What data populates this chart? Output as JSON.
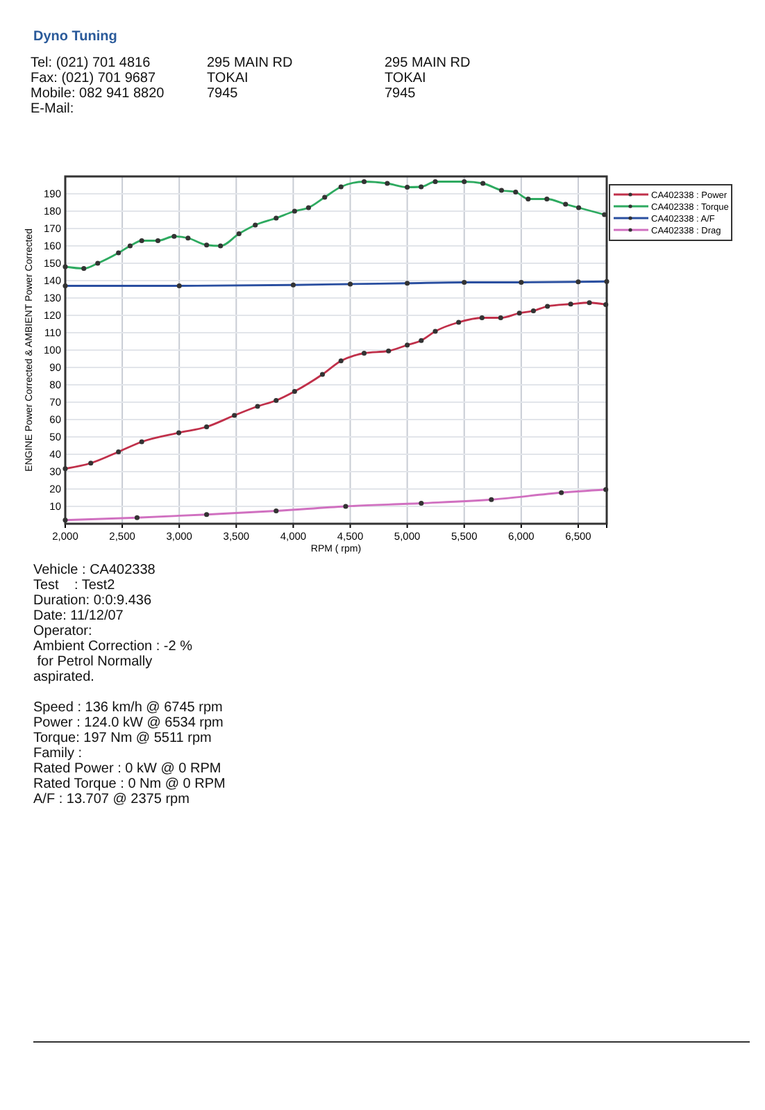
{
  "chart_data": {
    "type": "line",
    "xlabel": "RPM ( rpm)",
    "ylabel": "ENGINE Power Corrected & AMBIENT Power Corrected",
    "xlim": [
      2000,
      6750
    ],
    "ylim": [
      0,
      200
    ],
    "xticks": [
      {
        "value": 2000,
        "label": "2,000"
      },
      {
        "value": 2500,
        "label": "2,500"
      },
      {
        "value": 3000,
        "label": "3,000"
      },
      {
        "value": 3500,
        "label": "3,500"
      },
      {
        "value": 4000,
        "label": "4,000"
      },
      {
        "value": 4500,
        "label": "4,500"
      },
      {
        "value": 5000,
        "label": "5,000"
      },
      {
        "value": 5500,
        "label": "5,500"
      },
      {
        "value": 6000,
        "label": "6,000"
      },
      {
        "value": 6500,
        "label": "6,500"
      }
    ],
    "yticks": [
      10,
      20,
      30,
      40,
      50,
      60,
      70,
      80,
      90,
      100,
      110,
      120,
      130,
      140,
      150,
      160,
      170,
      180,
      190
    ],
    "grid": true,
    "legend": "top right",
    "marker": "circle",
    "line_style": "solid",
    "series": [
      {
        "name": "CA402338 : Power",
        "color": "#c0304a",
        "x": [
          2000,
          2224,
          2467,
          2671,
          2996,
          3240,
          3484,
          3687,
          3850,
          4012,
          4256,
          4419,
          4622,
          4836,
          5000,
          5123,
          5246,
          5451,
          5656,
          5820,
          5984,
          6107,
          6230,
          6434,
          6598,
          6742
        ],
        "values": [
          31.7,
          34.9,
          41.4,
          47.2,
          52.4,
          55.8,
          62.4,
          67.6,
          71,
          76.2,
          86,
          93.8,
          98.2,
          99.5,
          102.9,
          105.5,
          110.8,
          116,
          118.6,
          118.6,
          121.3,
          122.6,
          125.2,
          126.5,
          127.3,
          126.2
        ]
      },
      {
        "name": "CA402338 : Torque",
        "color": "#2eaa60",
        "x": [
          2000,
          2163,
          2285,
          2467,
          2569,
          2671,
          2813,
          2955,
          3077,
          3240,
          3362,
          3524,
          3667,
          3850,
          4012,
          4134,
          4276,
          4419,
          4622,
          4825,
          5000,
          5122,
          5246,
          5500,
          5664,
          5827,
          5951,
          6061,
          6225,
          6389,
          6504,
          6730
        ],
        "values": [
          148,
          147,
          150,
          156,
          160,
          163,
          163,
          165.5,
          164.5,
          160.5,
          160,
          167,
          172,
          176,
          180,
          182,
          188,
          194,
          197,
          196,
          193.8,
          194,
          197,
          197,
          196,
          192,
          191,
          187,
          187,
          184,
          182,
          178
        ]
      },
      {
        "name": "CA402338 : A/F",
        "color": "#2a4fa0",
        "x": [
          2000,
          3000,
          4000,
          4500,
          5000,
          5500,
          6000,
          6500,
          6750
        ],
        "values": [
          137,
          137,
          137.5,
          138,
          138.5,
          139,
          139,
          139.3,
          139.5
        ]
      },
      {
        "name": "CA402338 : Drag",
        "color": "#d070c0",
        "x": [
          2000,
          2630,
          3240,
          3850,
          4460,
          5123,
          5738,
          6352,
          6742
        ],
        "values": [
          2.1,
          3.5,
          5.3,
          7.4,
          10,
          11.8,
          13.9,
          17.9,
          19.7
        ]
      }
    ],
    "annotations": [
      "Dyno Tuning",
      "Tel: (021) 701 4816",
      "Fax: (021) 701 9687",
      "Mobile: 082 941 8820",
      "E-Mail:",
      "295 MAIN RD",
      "TOKAI",
      "7945",
      "295 MAIN RD",
      "TOKAI",
      "7945",
      "Vehicle : CA402338",
      "Test    : Test2",
      "Duration: 0:0:9.436",
      "Date: 11/12/07",
      "Operator:",
      "Ambient Correction : -2 %",
      " for Petrol Normally",
      "aspirated.",
      "Speed : 136 km/h @ 6745 rpm",
      "Power : 124.0 kW @ 6534 rpm",
      "Torque: 197 Nm @ 5511 rpm",
      "Family :",
      "Rated Power : 0 kW @ 0 RPM",
      "Rated Torque : 0 Nm @ 0 RPM",
      "A/F : 13.707 @ 2375 rpm"
    ]
  }
}
